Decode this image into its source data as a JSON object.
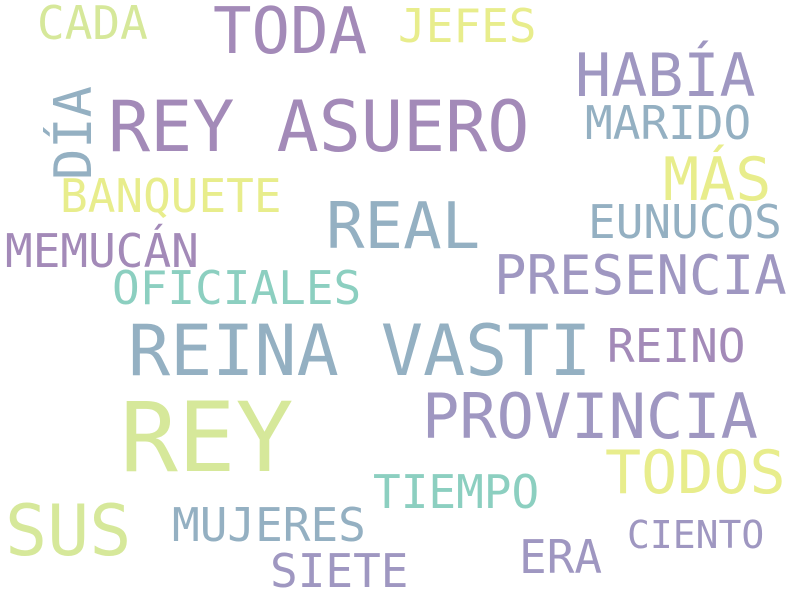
{
  "palette": {
    "purple": "#a38ab8",
    "lavender": "#9f97c1",
    "steel": "#94b0c2",
    "teal": "#8ccfc0",
    "lime": "#d6e89a",
    "yellow": "#e8ed8c"
  },
  "words": [
    {
      "text": "REY",
      "color": "lime"
    },
    {
      "text": "REY ASUERO",
      "color": "purple"
    },
    {
      "text": "REINA VASTI",
      "color": "steel"
    },
    {
      "text": "PROVINCIA",
      "color": "lavender"
    },
    {
      "text": "TODA",
      "color": "purple"
    },
    {
      "text": "HABÍA",
      "color": "lavender"
    },
    {
      "text": "REAL",
      "color": "steel"
    },
    {
      "text": "PRESENCIA",
      "color": "lavender"
    },
    {
      "text": "TODOS",
      "color": "yellow"
    },
    {
      "text": "SUS",
      "color": "lime"
    },
    {
      "text": "MÁS",
      "color": "yellow"
    },
    {
      "text": "DÍA",
      "color": "steel"
    },
    {
      "text": "EUNUCOS",
      "color": "steel"
    },
    {
      "text": "BANQUETE",
      "color": "yellow"
    },
    {
      "text": "OFICIALES",
      "color": "teal"
    },
    {
      "text": "MEMUCÁN",
      "color": "purple"
    },
    {
      "text": "MARIDO",
      "color": "steel"
    },
    {
      "text": "REINO",
      "color": "purple"
    },
    {
      "text": "JEFES",
      "color": "yellow"
    },
    {
      "text": "CADA",
      "color": "lime"
    },
    {
      "text": "TIEMPO",
      "color": "teal"
    },
    {
      "text": "MUJERES",
      "color": "steel"
    },
    {
      "text": "ERA",
      "color": "lavender"
    },
    {
      "text": "SIETE",
      "color": "lavender"
    },
    {
      "text": "CIENTO",
      "color": "lavender"
    }
  ]
}
